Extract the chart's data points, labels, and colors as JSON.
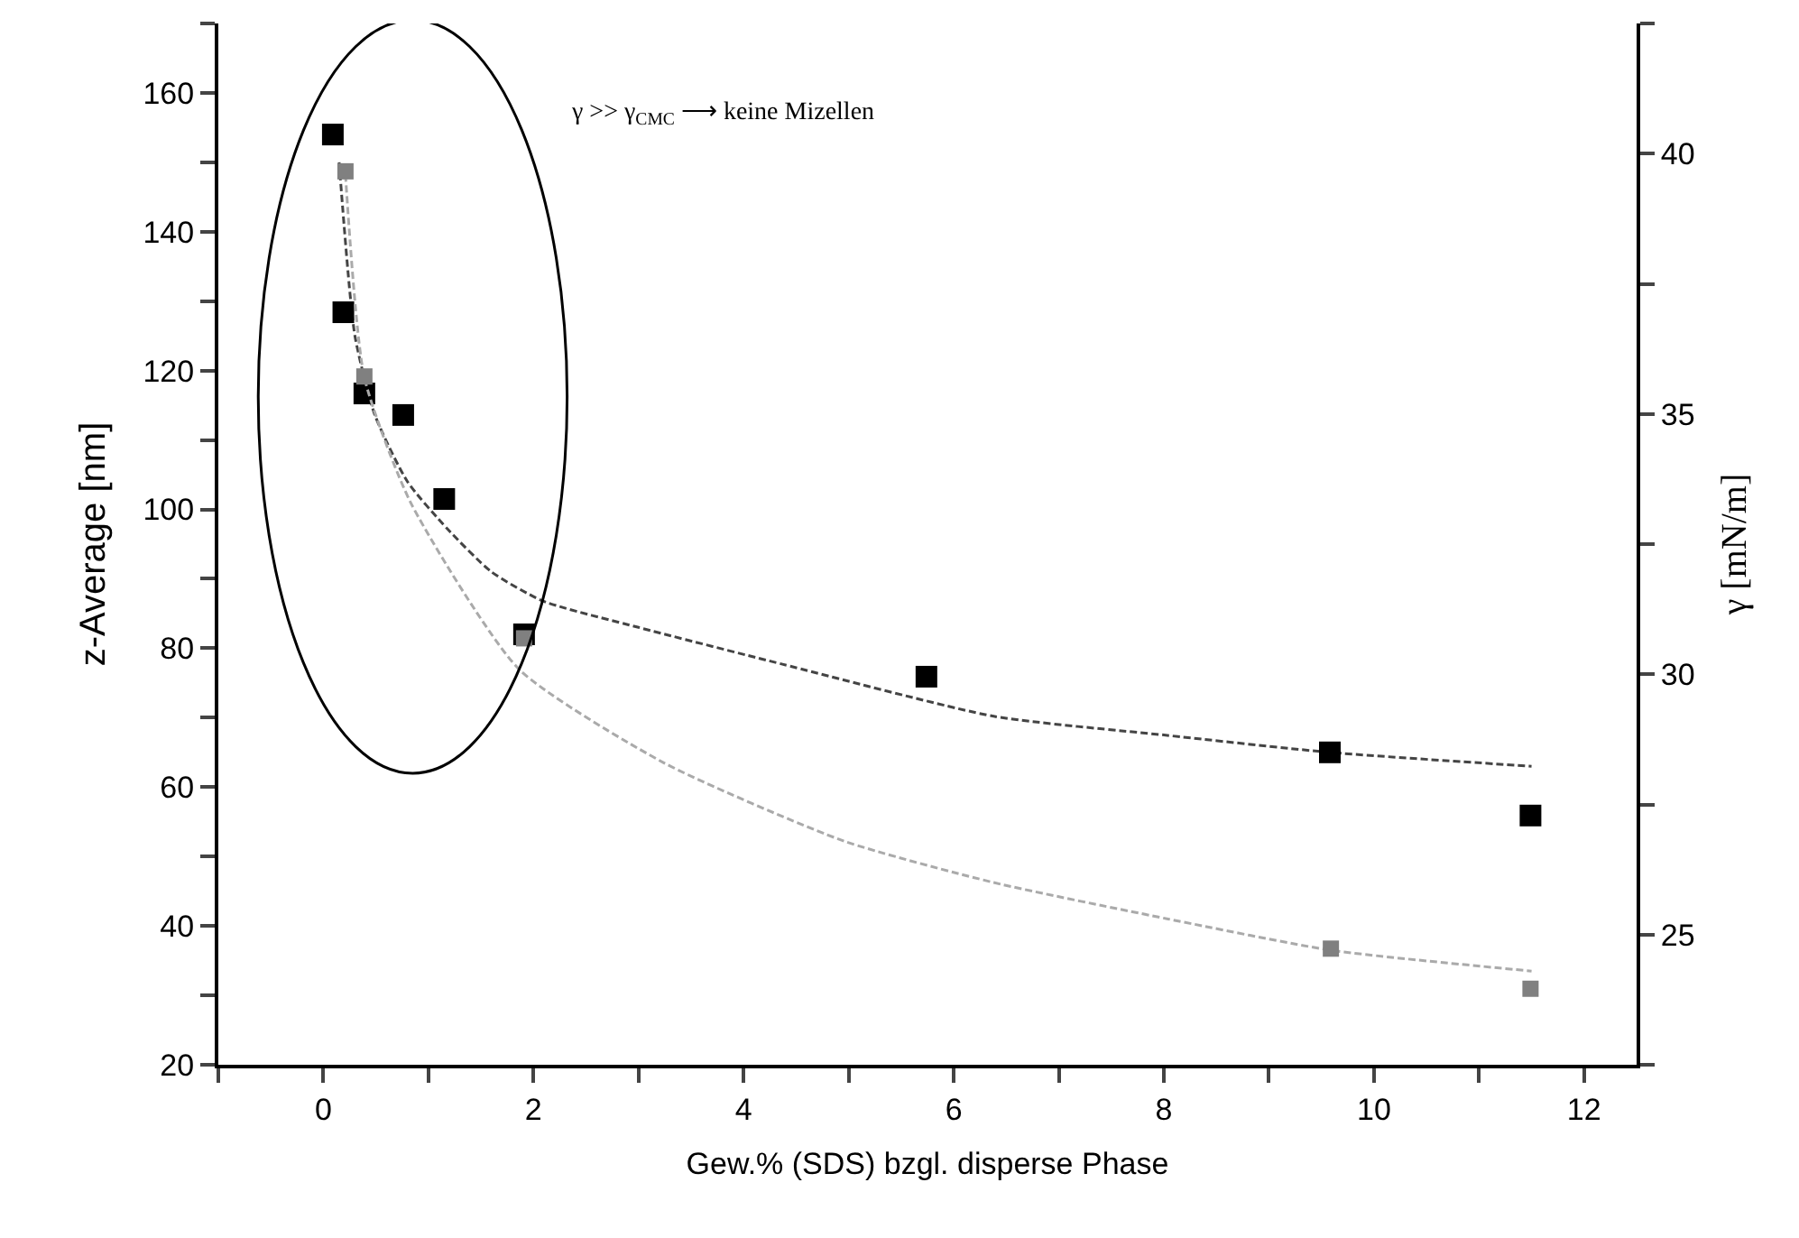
{
  "chart_data": {
    "type": "scatter",
    "xlabel": "Gew.% (SDS) bzgl. disperse Phase",
    "ylabel": "z-Average [nm]",
    "y2label": "γ [mN/m]",
    "annotations": [
      "γ >> γ$_{CMC}$ ⟶ keine Mizellen"
    ],
    "xlim": [
      -1,
      12.5
    ],
    "xticks": [
      {
        "value": -1,
        "label": null
      },
      0,
      {
        "value": 1,
        "label": null
      },
      2,
      {
        "value": 3,
        "label": null
      },
      4,
      {
        "value": 5,
        "label": null
      },
      6,
      {
        "value": 7,
        "label": null
      },
      8,
      {
        "value": 9,
        "label": null
      },
      10,
      {
        "value": 11,
        "label": null
      },
      12
    ],
    "ylim": [
      20,
      170
    ],
    "yticks": [
      20,
      {
        "value": 30,
        "label": null
      },
      40,
      {
        "value": 50,
        "label": null
      },
      60,
      {
        "value": 70,
        "label": null
      },
      80,
      {
        "value": 90,
        "label": null
      },
      100,
      {
        "value": 110,
        "label": null
      },
      120,
      {
        "value": 130,
        "label": null
      },
      140,
      {
        "value": 150,
        "label": null
      },
      160,
      {
        "value": 170,
        "label": null
      }
    ],
    "y2lim": [
      22.5,
      42.5
    ],
    "y2ticks": [
      {
        "value": 22.5,
        "label": null
      },
      25,
      {
        "value": 27.5,
        "label": null
      },
      30,
      {
        "value": 32.5,
        "label": null
      },
      35,
      {
        "value": 37.5,
        "label": null
      },
      40,
      {
        "value": 42.5,
        "label": null
      }
    ],
    "series": [
      {
        "type": "line",
        "color": "#444444",
        "marker": "none",
        "line_style": "dashed",
        "x": [
          0.15,
          0.3,
          0.49,
          0.8,
          1.18,
          1.6,
          2.09,
          3,
          4.37,
          6.38,
          8,
          9.58,
          11.5
        ],
        "values": [
          150,
          125,
          113.6,
          104,
          97.2,
          91,
          86.8,
          83,
          77.7,
          70.2,
          67.5,
          65,
          63
        ]
      },
      {
        "type": "line",
        "axis": "y2",
        "color": "#aaaaaa",
        "marker": "none",
        "line_style": "dashed",
        "x": [
          0.21,
          0.39,
          0.83,
          1.86,
          3.24,
          4.95,
          6.38,
          8.04,
          9.59,
          11.5
        ],
        "values": [
          39.6,
          35.7,
          33.3,
          30.1,
          28.3,
          26.8,
          26.0,
          25.3,
          24.7,
          24.3
        ]
      },
      {
        "color": "#000000",
        "marker": "square",
        "x": [
          0.09,
          0.19,
          0.39,
          0.76,
          1.15,
          1.91,
          5.74,
          9.58,
          11.49
        ],
        "values": [
          154,
          128.4,
          116.7,
          113.6,
          101.5,
          82,
          75.9,
          65,
          55.9
        ]
      },
      {
        "axis": "y2",
        "color": "#808080",
        "marker": "square",
        "x": [
          0.21,
          0.39,
          1.91,
          9.59,
          11.49
        ],
        "values": [
          39.66,
          35.72,
          30.69,
          24.73,
          23.96
        ]
      }
    ]
  }
}
